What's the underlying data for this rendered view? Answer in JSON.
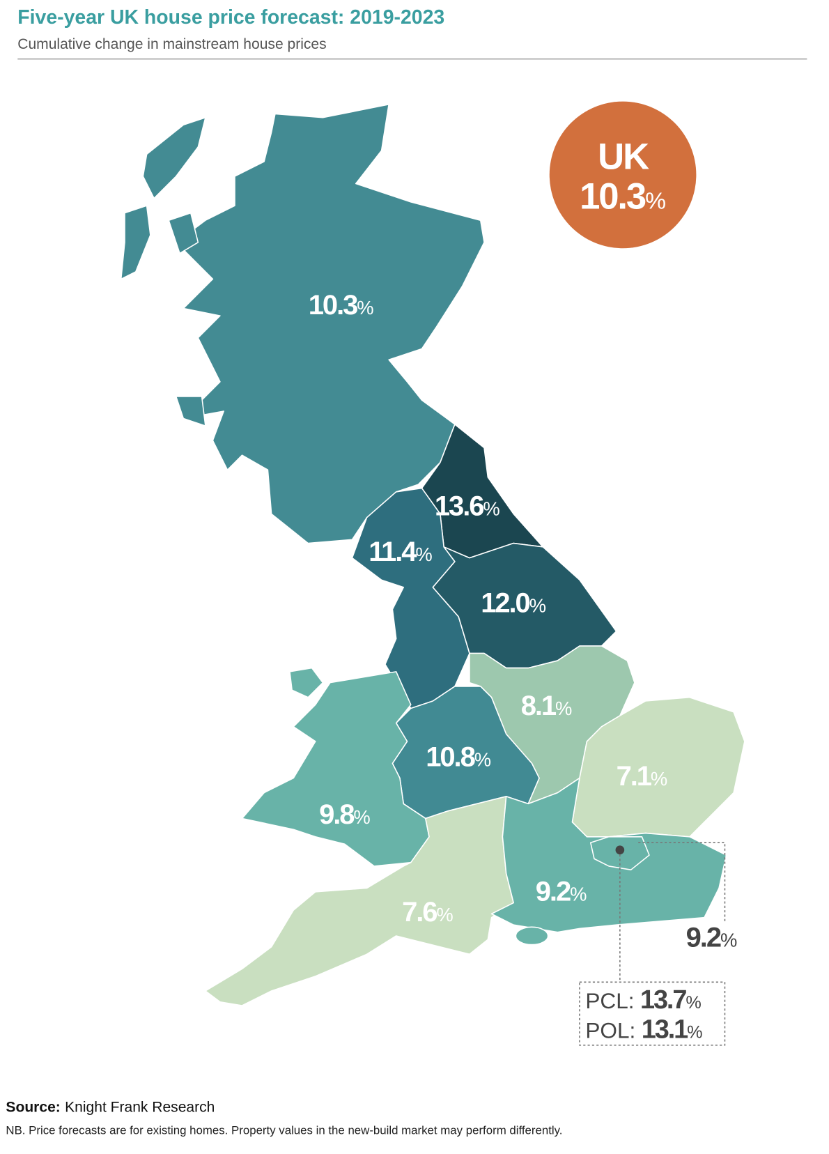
{
  "header": {
    "title": "Five-year UK house price forecast: 2019-2023",
    "subtitle": "Cumulative change in mainstream house prices"
  },
  "national": {
    "label": "UK",
    "value": "10.3",
    "unit": "%"
  },
  "regions": [
    {
      "value": "10.3",
      "unit": "%"
    },
    {
      "value": "13.6",
      "unit": "%"
    },
    {
      "value": "11.4",
      "unit": "%"
    },
    {
      "value": "12.0",
      "unit": "%"
    },
    {
      "value": "8.1",
      "unit": "%"
    },
    {
      "value": "7.1",
      "unit": "%"
    },
    {
      "value": "10.8",
      "unit": "%"
    },
    {
      "value": "9.8",
      "unit": "%"
    },
    {
      "value": "7.6",
      "unit": "%"
    },
    {
      "value": "9.2",
      "unit": "%"
    }
  ],
  "london": {
    "value": "9.2",
    "unit": "%",
    "pcl": {
      "label": "PCL:",
      "value": "13.7",
      "unit": "%"
    },
    "pol": {
      "label": "POL:",
      "value": "13.1",
      "unit": "%"
    }
  },
  "footer": {
    "source_label": "Source:",
    "source": "Knight Frank Research",
    "note": "NB. Price forecasts are for existing homes. Property values in the new-build market may perform differently."
  }
}
